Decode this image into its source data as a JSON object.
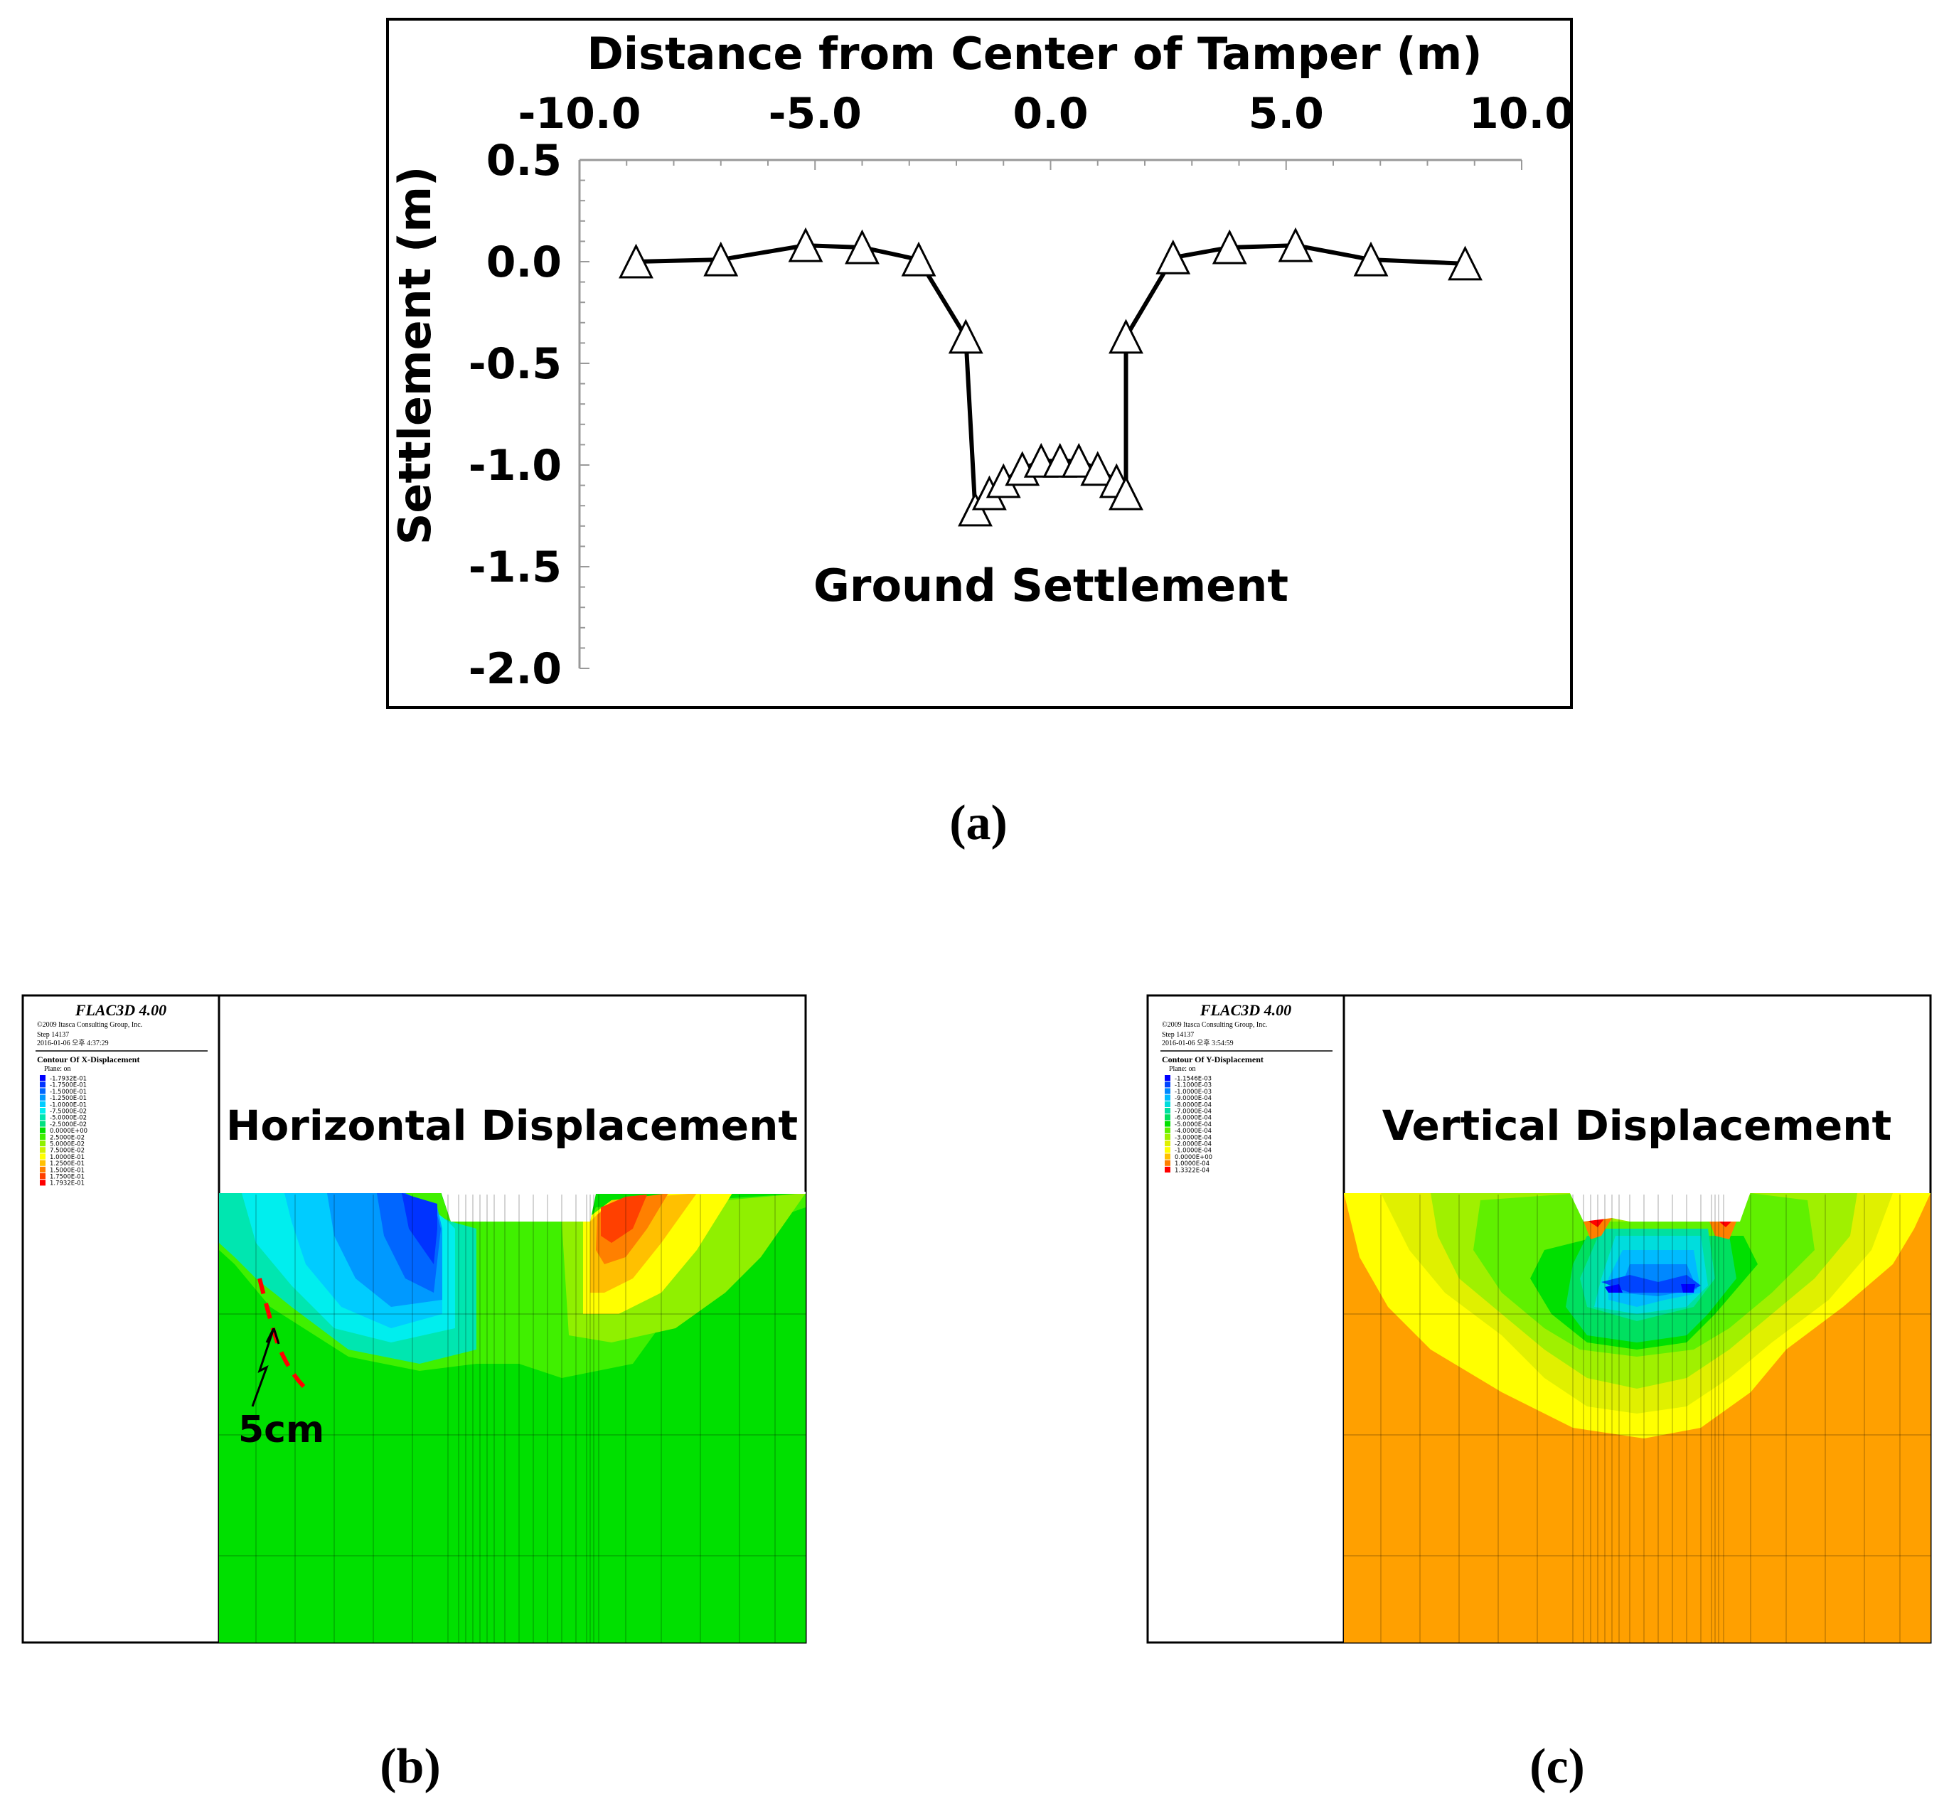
{
  "chart_data": [
    {
      "type": "line",
      "title": "Ground Settlement",
      "xlabel": "Distance from Center of Tamper (m)",
      "ylabel": "Settlement (m)",
      "xlim": [
        -10.0,
        10.0
      ],
      "ylim": [
        -2.0,
        0.5
      ],
      "xticks": [
        "-10.0",
        "-5.0",
        "0.0",
        "5.0",
        "10.0"
      ],
      "yticks": [
        "0.5",
        "0.0",
        "-0.5",
        "-1.0",
        "-1.5",
        "-2.0"
      ],
      "marker": "triangle",
      "x": [
        -8.8,
        -7.0,
        -5.2,
        -4.0,
        -2.8,
        -1.8,
        -1.6,
        -1.3,
        -1.0,
        -0.6,
        -0.2,
        0.2,
        0.6,
        1.0,
        1.4,
        1.6,
        1.6,
        2.6,
        3.8,
        5.2,
        6.8,
        8.8
      ],
      "y": [
        0.0,
        0.01,
        0.08,
        0.07,
        0.01,
        -0.37,
        -1.22,
        -1.14,
        -1.08,
        -1.02,
        -0.98,
        -0.98,
        -0.98,
        -1.02,
        -1.08,
        -1.14,
        -0.37,
        0.02,
        0.07,
        0.08,
        0.01,
        -0.01
      ]
    },
    {
      "type": "heatmap",
      "title": "Horizontal Displacement",
      "software": "FLAC3D 4.00",
      "copyright": "©2009 Itasca Consulting Group, Inc.",
      "step": "Step 14137",
      "date": "2016-01-06 오후 4:37:29",
      "contour": "Contour Of X-Displacement",
      "plane": "Plane: on",
      "levels": [
        "-1.7932E-01",
        "-1.7500E-01",
        "-1.5000E-01",
        "-1.2500E-01",
        "-1.0000E-01",
        "-7.5000E-02",
        "-5.0000E-02",
        "-2.5000E-02",
        "0.0000E+00",
        "2.5000E-02",
        "5.0000E-02",
        "7.5000E-02",
        "1.0000E-01",
        "1.2500E-01",
        "1.5000E-01",
        "1.7500E-01",
        "1.7932E-01"
      ],
      "level_colors": [
        "#0000ff",
        "#0033ff",
        "#0066ff",
        "#0099ff",
        "#00ccff",
        "#00eeee",
        "#00e6b0",
        "#00e080",
        "#00e000",
        "#40f000",
        "#90f000",
        "#d0f000",
        "#ffff00",
        "#ffc000",
        "#ff8000",
        "#ff4000",
        "#ff0000"
      ],
      "annotation": "5cm"
    },
    {
      "type": "heatmap",
      "title": "Vertical Displacement",
      "software": "FLAC3D 4.00",
      "copyright": "©2009 Itasca Consulting Group, Inc.",
      "step": "Step 14137",
      "date": "2016-01-06 오후 3:54:59",
      "contour": "Contour Of Y-Displacement",
      "plane": "Plane: on",
      "levels": [
        "-1.1546E-03",
        "-1.1000E-03",
        "-1.0000E-03",
        "-9.0000E-04",
        "-8.0000E-04",
        "-7.0000E-04",
        "-6.0000E-04",
        "-5.0000E-04",
        "-4.0000E-04",
        "-3.0000E-04",
        "-2.0000E-04",
        "-1.0000E-04",
        "0.0000E+00",
        "1.0000E-04",
        "1.3322E-04"
      ],
      "level_colors": [
        "#0000ff",
        "#0044ff",
        "#0088ff",
        "#00bbff",
        "#00dddd",
        "#00e0a0",
        "#00e060",
        "#00e000",
        "#60f000",
        "#a0f000",
        "#e0f000",
        "#ffff00",
        "#ffc000",
        "#ff8000",
        "#ff0000"
      ]
    }
  ],
  "captions": {
    "a": "(a)",
    "b": "(b)",
    "c": "(c)"
  },
  "colors": {
    "green_field": "#00e000",
    "orange_field": "#ffa000",
    "annotation_red": "#ff0000"
  }
}
